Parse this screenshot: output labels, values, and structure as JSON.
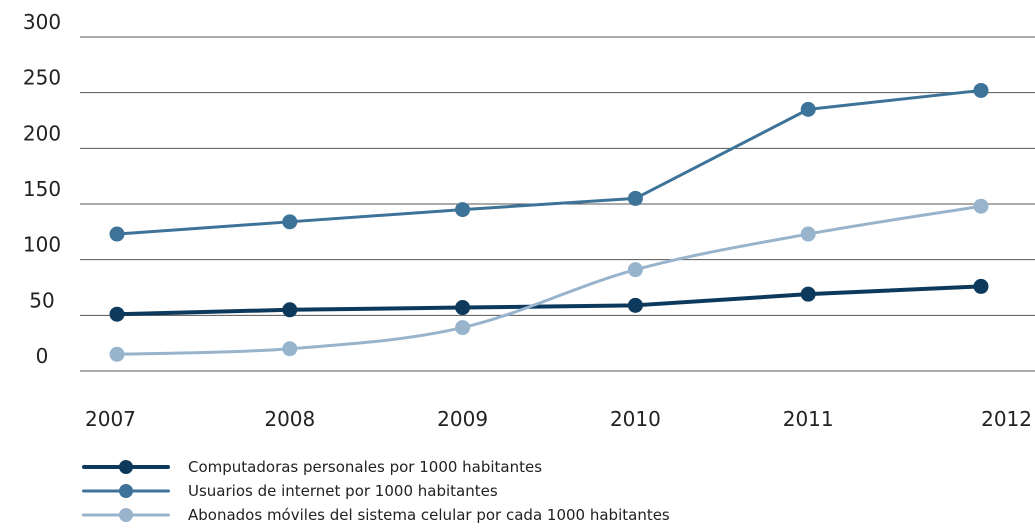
{
  "chart_data": {
    "type": "line",
    "title": "",
    "xlabel": "",
    "ylabel": "",
    "categories": [
      "2007",
      "2008",
      "2009",
      "2010",
      "2011",
      "2012"
    ],
    "yticks": [
      "0",
      "50",
      "100",
      "150",
      "200",
      "250",
      "300"
    ],
    "ylim": [
      0,
      300
    ],
    "grid": "horizontal",
    "legend_position": "bottom-left",
    "series": [
      {
        "name": "Computadoras personales por 1000 habitantes",
        "values": [
          51,
          55,
          57,
          59,
          69,
          76
        ],
        "color": "#0d3a5c",
        "style": "straight"
      },
      {
        "name": "Usuarios de internet por 1000 habitantes",
        "values": [
          123,
          134,
          145,
          155,
          235,
          252
        ],
        "color": "#3e7399",
        "style": "straight"
      },
      {
        "name": "Abonados móviles del sistema celular por cada 1000 habitantes",
        "values": [
          15,
          20,
          39,
          91,
          123,
          148
        ],
        "color": "#98b4cd",
        "style": "smooth"
      }
    ]
  }
}
